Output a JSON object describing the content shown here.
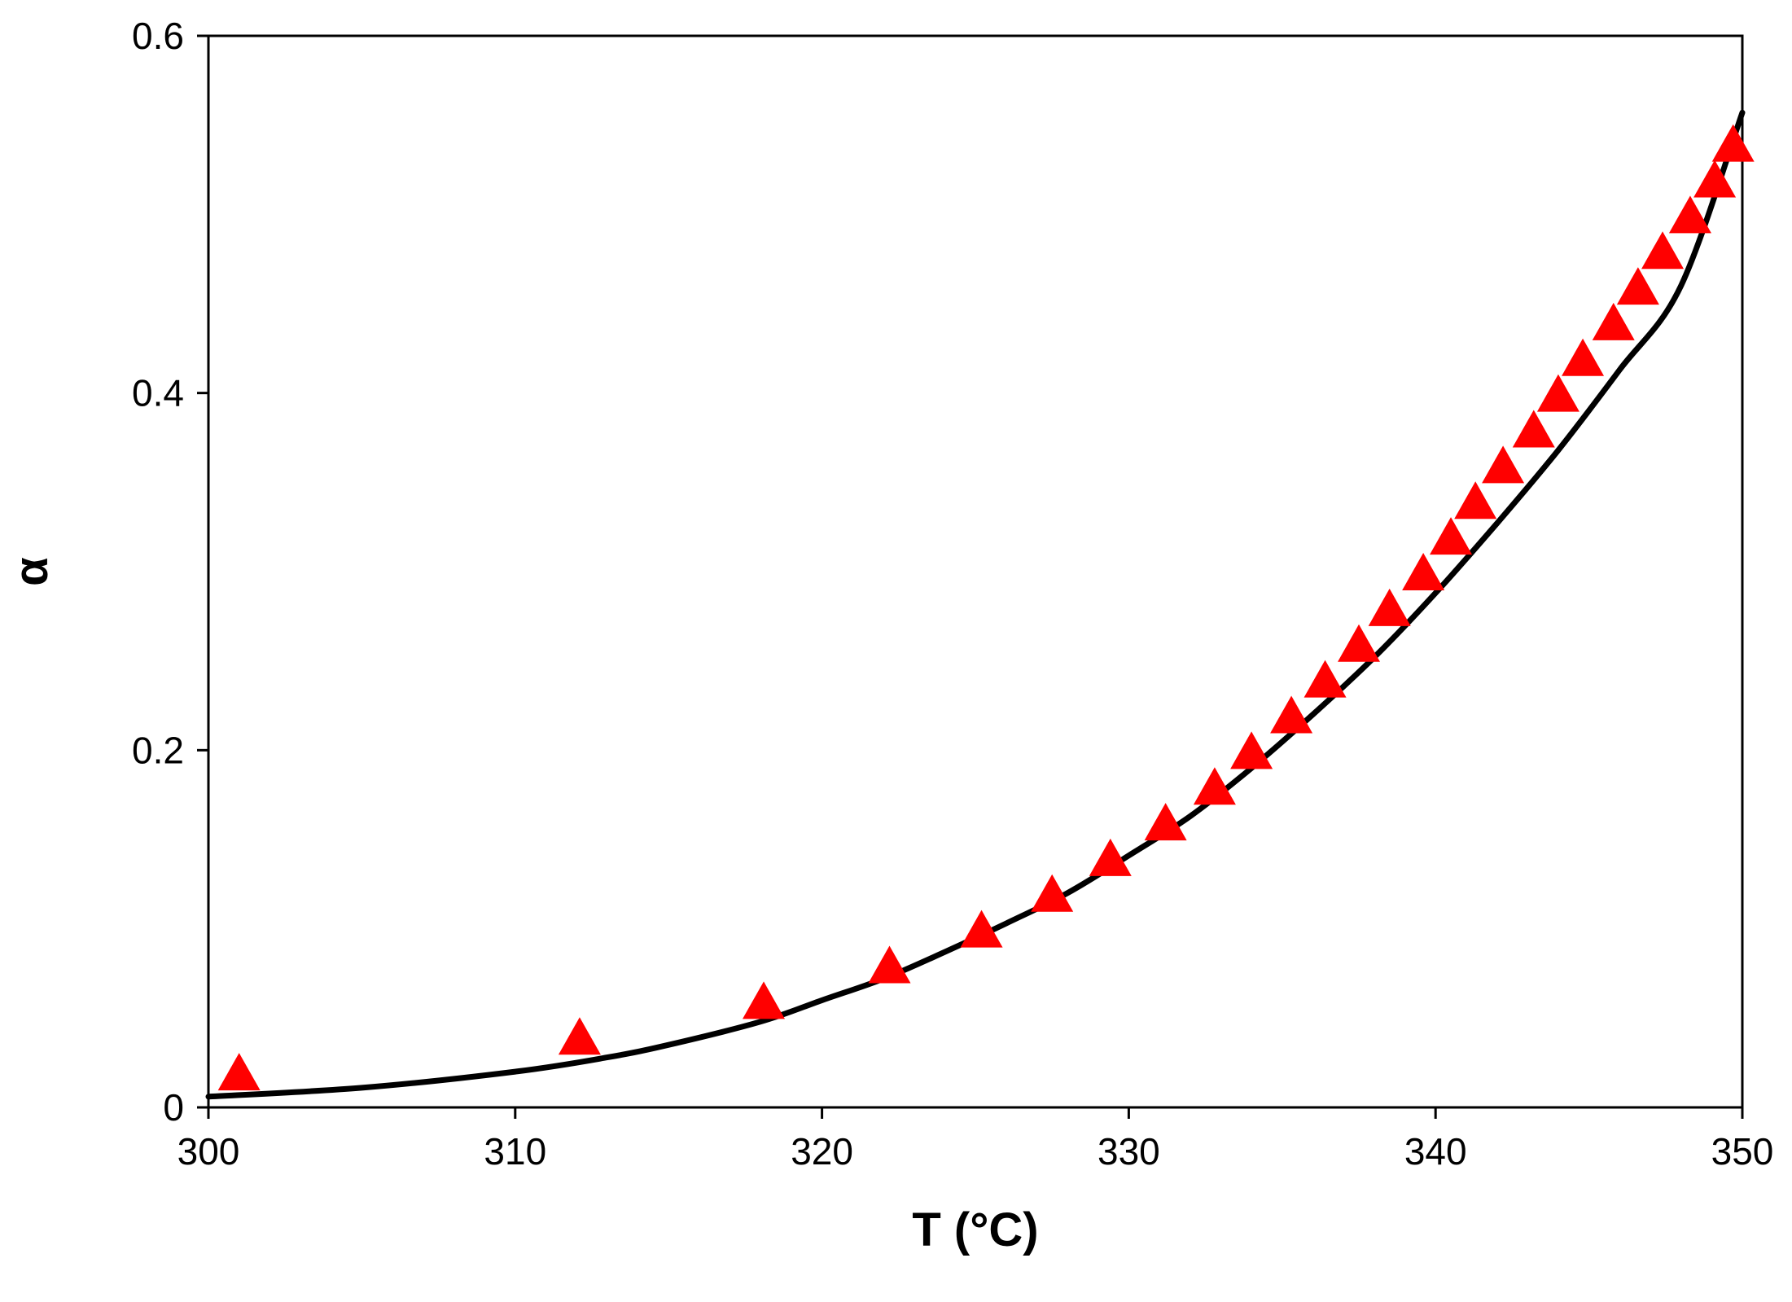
{
  "chart_data": {
    "type": "scatter",
    "title": "",
    "xlabel": "T (°C)",
    "ylabel": "α",
    "xlim": [
      300,
      350
    ],
    "ylim": [
      0,
      0.6
    ],
    "xticks": [
      300,
      310,
      320,
      330,
      340,
      350
    ],
    "yticks": [
      0,
      0.2,
      0.4,
      0.6
    ],
    "xtick_labels": [
      "300",
      "310",
      "320",
      "330",
      "340",
      "350"
    ],
    "ytick_labels": [
      "0",
      "0.2",
      "0.4",
      "0.6"
    ],
    "grid": false,
    "series": [
      {
        "kind": "markers",
        "marker": "triangle",
        "color": "#ff0000",
        "points": [
          [
            301.0,
            0.02
          ],
          [
            312.1,
            0.04
          ],
          [
            318.1,
            0.06
          ],
          [
            322.2,
            0.08
          ],
          [
            325.2,
            0.1
          ],
          [
            327.5,
            0.12
          ],
          [
            329.4,
            0.14
          ],
          [
            331.2,
            0.16
          ],
          [
            332.8,
            0.18
          ],
          [
            334.0,
            0.2
          ],
          [
            335.3,
            0.22
          ],
          [
            336.4,
            0.24
          ],
          [
            337.5,
            0.26
          ],
          [
            338.5,
            0.28
          ],
          [
            339.6,
            0.3
          ],
          [
            340.5,
            0.32
          ],
          [
            341.3,
            0.34
          ],
          [
            342.2,
            0.36
          ],
          [
            343.2,
            0.38
          ],
          [
            344.0,
            0.4
          ],
          [
            344.8,
            0.42
          ],
          [
            345.8,
            0.44
          ],
          [
            346.6,
            0.46
          ],
          [
            347.4,
            0.48
          ],
          [
            348.3,
            0.5
          ],
          [
            349.1,
            0.52
          ],
          [
            349.7,
            0.54
          ]
        ]
      },
      {
        "kind": "line",
        "color": "#000000",
        "points": [
          [
            300,
            0.006
          ],
          [
            305,
            0.011
          ],
          [
            310,
            0.02
          ],
          [
            313,
            0.028
          ],
          [
            315,
            0.035
          ],
          [
            318,
            0.048
          ],
          [
            320,
            0.06
          ],
          [
            322,
            0.072
          ],
          [
            324,
            0.087
          ],
          [
            326,
            0.103
          ],
          [
            328,
            0.12
          ],
          [
            330,
            0.141
          ],
          [
            332,
            0.163
          ],
          [
            334,
            0.19
          ],
          [
            336,
            0.22
          ],
          [
            338,
            0.252
          ],
          [
            340,
            0.288
          ],
          [
            342,
            0.327
          ],
          [
            344,
            0.368
          ],
          [
            346,
            0.413
          ],
          [
            348,
            0.46
          ],
          [
            350,
            0.557
          ]
        ]
      }
    ]
  }
}
